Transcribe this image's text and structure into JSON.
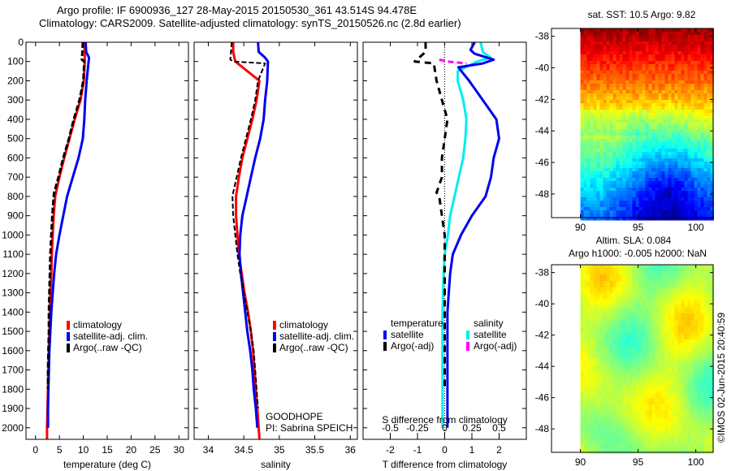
{
  "header": {
    "line1": "Argo profile: IF 6900936_127 28-May-2015 20150530_361 43.514S 94.478E",
    "line2": "Climatology: CARS2009. Satellite-adjusted climatology: synTS_20150526.nc (2.8d earlier)"
  },
  "colors": {
    "climatology": "#ff0000",
    "satellite": "#0000ee",
    "argo": "#000000",
    "sal_satellite": "#00eeee",
    "sal_argo": "#ff00ff"
  },
  "chart_data": [
    {
      "type": "line",
      "name": "temperature-profile",
      "xlabel": "temperature (deg C)",
      "ylabel": "",
      "xlim": [
        -2,
        32
      ],
      "ylim": [
        2060,
        0
      ],
      "xticks": [
        0,
        5,
        10,
        15,
        20,
        25,
        30
      ],
      "yticks": [
        0,
        100,
        200,
        300,
        400,
        500,
        600,
        700,
        800,
        900,
        1000,
        1100,
        1200,
        1300,
        1400,
        1500,
        1600,
        1700,
        1800,
        1900,
        2000
      ],
      "legend": [
        "climatology",
        "satellite-adj. clim.",
        "Argo(..raw -QC)"
      ],
      "legend_position": "center-right",
      "series": [
        {
          "name": "climatology",
          "depth": [
            0,
            50,
            100,
            200,
            300,
            400,
            500,
            600,
            700,
            800,
            900,
            1000,
            1100,
            1200,
            1300,
            1400,
            1500,
            1600,
            1700,
            1800,
            1900,
            2000,
            2060
          ],
          "values": [
            10.2,
            10.3,
            10.3,
            10.1,
            9.4,
            8.2,
            7.1,
            6.0,
            5.0,
            4.1,
            3.8,
            3.6,
            3.4,
            3.3,
            3.1,
            3.0,
            2.9,
            2.8,
            2.7,
            2.6,
            2.5,
            2.4,
            2.4
          ]
        },
        {
          "name": "satellite-adj. clim.",
          "depth": [
            0,
            50,
            80,
            100,
            200,
            300,
            400,
            500,
            600,
            700,
            800,
            900,
            1000,
            1100,
            1200,
            1300,
            1400,
            1500,
            1600,
            1700,
            1800,
            1900,
            2000
          ],
          "values": [
            10.5,
            10.6,
            11.2,
            11.1,
            10.7,
            10.4,
            10.2,
            9.9,
            9.0,
            7.8,
            6.6,
            5.8,
            5.0,
            4.3,
            3.9,
            3.6,
            3.3,
            3.1,
            2.9,
            2.8,
            2.7,
            2.6,
            2.6
          ]
        },
        {
          "name": "Argo(..raw -QC)",
          "depth": [
            0,
            50,
            90,
            100,
            200,
            300,
            400,
            500,
            600,
            700,
            780,
            800,
            900,
            1000,
            1100,
            1200,
            1300,
            1400,
            1500,
            1600,
            1700,
            1800
          ],
          "values": [
            9.9,
            9.8,
            9.7,
            10.2,
            10.0,
            9.2,
            8.0,
            7.0,
            5.8,
            4.8,
            3.9,
            3.8,
            3.5,
            3.3,
            3.1,
            3.0,
            2.9,
            2.8,
            2.8,
            2.7,
            2.6,
            2.6
          ]
        }
      ]
    },
    {
      "type": "line",
      "name": "salinity-profile",
      "xlabel": "salinity",
      "xlim": [
        33.8,
        36.1
      ],
      "ylim": [
        2060,
        0
      ],
      "xticks": [
        34,
        34.5,
        35,
        35.5,
        36
      ],
      "legend": [
        "climatology",
        "satellite-adj. clim.",
        "Argo(..raw -QC)"
      ],
      "legend_position": "center-right",
      "annotation": [
        "GOODHOPE",
        "PI: Sabrina SPEICH"
      ],
      "series": [
        {
          "name": "climatology",
          "depth": [
            0,
            50,
            100,
            150,
            200,
            300,
            400,
            500,
            600,
            700,
            800,
            900,
            1000,
            1100,
            1200,
            1300,
            1400,
            1500,
            1600,
            1700,
            1800,
            1900,
            2000,
            2060
          ],
          "values": [
            34.35,
            34.35,
            34.38,
            34.55,
            34.72,
            34.68,
            34.62,
            34.55,
            34.48,
            34.43,
            34.39,
            34.39,
            34.41,
            34.43,
            34.47,
            34.51,
            34.56,
            34.6,
            34.63,
            34.65,
            34.67,
            34.69,
            34.71,
            34.72
          ]
        },
        {
          "name": "satellite-adj. clim.",
          "depth": [
            0,
            50,
            80,
            100,
            200,
            300,
            400,
            500,
            600,
            700,
            800,
            900,
            1000,
            1100,
            1200,
            1300,
            1400,
            1500,
            1600,
            1700,
            1800,
            1900,
            2000
          ],
          "values": [
            34.7,
            34.71,
            34.8,
            34.84,
            34.83,
            34.8,
            34.78,
            34.73,
            34.66,
            34.6,
            34.54,
            34.48,
            34.45,
            34.44,
            34.46,
            34.49,
            34.52,
            34.55,
            34.59,
            34.62,
            34.64,
            34.67,
            34.69
          ]
        },
        {
          "name": "Argo(..raw -QC)",
          "depth": [
            0,
            50,
            90,
            100,
            110,
            200,
            300,
            400,
            500,
            600,
            700,
            780,
            800,
            900,
            1000,
            1100,
            1200,
            1300,
            1400,
            1500,
            1600,
            1700,
            1800,
            1900
          ],
          "values": [
            34.33,
            34.32,
            34.31,
            34.35,
            34.8,
            34.7,
            34.66,
            34.6,
            34.53,
            34.46,
            34.4,
            34.35,
            34.34,
            34.35,
            34.38,
            34.41,
            34.45,
            34.5,
            34.55,
            34.6,
            34.64,
            34.66,
            34.68,
            34.7
          ]
        }
      ]
    },
    {
      "type": "line",
      "name": "difference-profile",
      "xlabel": "T difference from climatology",
      "xlabel_top": "S difference from climatology",
      "xlim": [
        -3,
        3
      ],
      "ylim": [
        2060,
        0
      ],
      "xticks": [
        -2,
        -1,
        0,
        1,
        2
      ],
      "xticks_secondary": [
        -0.5,
        -0.25,
        0,
        0.25,
        0.5
      ],
      "legend_temperature_title": "temperature",
      "legend_salinity_title": "salinity",
      "legend": [
        "satellite",
        "Argo(-adj)",
        "satellite",
        "Argo(-adj)"
      ],
      "legend_position": "center",
      "series": [
        {
          "name": "temperature satellite",
          "depth": [
            0,
            40,
            60,
            90,
            110,
            130,
            200,
            300,
            400,
            500,
            600,
            700,
            800,
            900,
            1000,
            1100,
            1200,
            1300,
            1400,
            1600,
            1800,
            2000
          ],
          "values": [
            1.1,
            0.95,
            1.1,
            1.8,
            1.4,
            0.5,
            0.9,
            1.4,
            1.9,
            2.0,
            1.8,
            1.7,
            1.5,
            1.0,
            0.6,
            0.3,
            0.2,
            0.15,
            0.1,
            0.1,
            0.1,
            0.1
          ]
        },
        {
          "name": "temperature Argo(-adj)",
          "depth": [
            0,
            50,
            100,
            110,
            200,
            300,
            400,
            500,
            600,
            700,
            780,
            800,
            900,
            1000,
            1100,
            1200,
            1300,
            1400,
            1600,
            1800
          ],
          "values": [
            -0.7,
            -0.7,
            -1.1,
            -0.4,
            -0.3,
            -0.1,
            0.1,
            0.0,
            -0.1,
            -0.1,
            -0.3,
            -0.2,
            -0.1,
            0.0,
            0.0,
            0.0,
            0.0,
            0.0,
            0.0,
            0.0
          ]
        }
      ],
      "salinity_series": [
        {
          "name": "salinity satellite",
          "depth": [
            0,
            50,
            80,
            100,
            150,
            200,
            300,
            400,
            500,
            600,
            700,
            800,
            900,
            1000,
            1100,
            1200,
            1400,
            1600,
            1800,
            2000
          ],
          "values": [
            0.33,
            0.35,
            0.42,
            0.3,
            0.12,
            0.12,
            0.17,
            0.2,
            0.19,
            0.17,
            0.13,
            0.09,
            0.05,
            0.03,
            0.0,
            -0.01,
            -0.02,
            -0.02,
            -0.02,
            -0.02
          ]
        },
        {
          "name": "salinity Argo(-adj)",
          "depth": [
            90,
            100,
            110
          ],
          "values": [
            -0.05,
            0.02,
            0.2
          ]
        }
      ]
    },
    {
      "type": "heatmap",
      "name": "sst-map",
      "title": "sat. SST: 10.5 Argo: 9.82",
      "xlim": [
        87.5,
        101.5
      ],
      "ylim": [
        -49.5,
        -37.5
      ],
      "xticks": [
        90,
        95,
        100
      ],
      "yticks": [
        -38,
        -40,
        -42,
        -44,
        -46,
        -48
      ]
    },
    {
      "type": "heatmap",
      "name": "sla-map",
      "title": "Altim. SLA: 0.084",
      "subtitle": "Argo h1000: -0.005 h2000: NaN",
      "xlim": [
        87.5,
        101.5
      ],
      "ylim": [
        -49.5,
        -37.5
      ],
      "xticks": [
        90,
        95,
        100
      ],
      "yticks": [
        -38,
        -40,
        -42,
        -44,
        -46,
        -48
      ]
    }
  ],
  "footer": {
    "stamp": "©IMOS 02-Jun-2015 20:40:59"
  }
}
